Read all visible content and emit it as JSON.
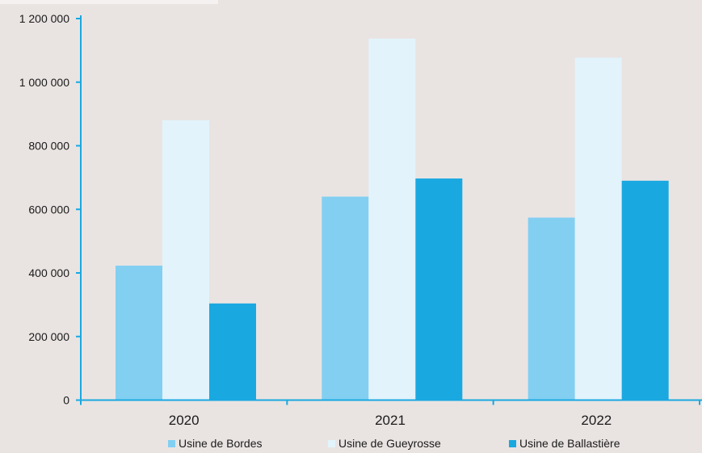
{
  "chart_data": {
    "type": "bar",
    "categories": [
      "2020",
      "2021",
      "2022"
    ],
    "series": [
      {
        "name": "Usine de Bordes",
        "values": [
          423000,
          640000,
          574000
        ],
        "color": "#82cff2"
      },
      {
        "name": "Usine de Gueyrosse",
        "values": [
          880000,
          1137000,
          1077000
        ],
        "color": "#e2f3fb"
      },
      {
        "name": "Usine de Ballastière",
        "values": [
          304000,
          697000,
          690000
        ],
        "color": "#1aa8e0"
      }
    ],
    "y_ticks": [
      {
        "value": 0,
        "label": "0"
      },
      {
        "value": 200000,
        "label": "200 000"
      },
      {
        "value": 400000,
        "label": "400 000"
      },
      {
        "value": 600000,
        "label": "600 000"
      },
      {
        "value": 800000,
        "label": "800 000"
      },
      {
        "value": 1000000,
        "label": "1 000 000"
      },
      {
        "value": 1200000,
        "label": "1 200 000"
      }
    ],
    "ylim": [
      0,
      1200000
    ],
    "title": "",
    "xlabel": "",
    "ylabel": "",
    "grid": false,
    "legend_position": "bottom",
    "axis_color": "#1aa8e0",
    "background": "#e9e4e2"
  }
}
